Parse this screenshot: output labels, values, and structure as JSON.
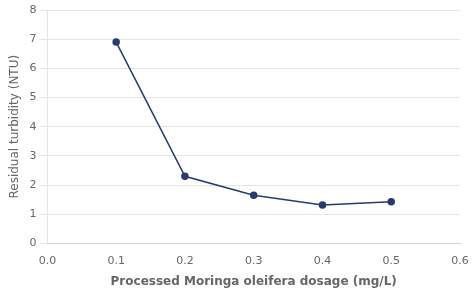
{
  "chart_data": {
    "type": "line",
    "x": [
      0.1,
      0.2,
      0.3,
      0.4,
      0.5
    ],
    "values": [
      6.9,
      2.3,
      1.65,
      1.32,
      1.43
    ],
    "xlabel": "Processed Moringa oleifera dosage (mg/L)",
    "ylabel": "Residual turbidity (NTU)",
    "xlim": [
      0,
      0.6
    ],
    "ylim": [
      0,
      8
    ],
    "xticks": [
      {
        "value": 0,
        "label": "0.0"
      },
      0.1,
      0.2,
      0.3,
      0.4,
      0.5,
      0.6
    ],
    "yticks": [
      0,
      1,
      2,
      3,
      4,
      5,
      6,
      7,
      8
    ],
    "color": "#2b3a6e",
    "marker": "circle",
    "grid": "y"
  }
}
